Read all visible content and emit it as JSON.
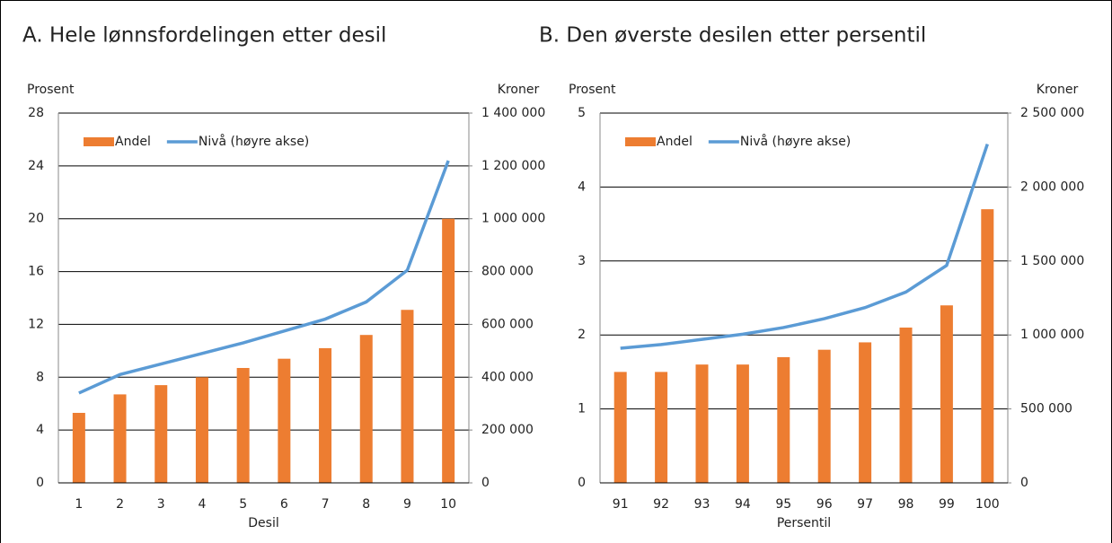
{
  "chart_data": [
    {
      "type": "combo",
      "title": "A. Hele lønnsfordelingen etter desil",
      "ylabel": "Prosent",
      "y2label": "Kroner",
      "xlabel": "Desil",
      "categories": [
        "1",
        "2",
        "3",
        "4",
        "5",
        "6",
        "7",
        "8",
        "9",
        "10"
      ],
      "series": [
        {
          "name": "Andel",
          "type": "bar",
          "color": "#ed7d31",
          "values": [
            5.3,
            6.7,
            7.4,
            8.0,
            8.7,
            9.4,
            10.2,
            11.2,
            13.1,
            20.0
          ]
        },
        {
          "name": "Nivå (høyre akse)",
          "type": "line",
          "axis": "y2",
          "color": "#5b9bd5",
          "values": [
            340000,
            410000,
            450000,
            490000,
            530000,
            575000,
            620000,
            685000,
            805000,
            1220000
          ]
        }
      ],
      "ylim": [
        0,
        28
      ],
      "yticks": [
        0,
        4,
        8,
        12,
        16,
        20,
        24,
        28
      ],
      "y2lim": [
        0,
        1400000
      ],
      "y2ticks": [
        0,
        {
          "value": 200000,
          "label": "200 000"
        },
        {
          "value": 400000,
          "label": "400 000"
        },
        {
          "value": 600000,
          "label": "600 000"
        },
        {
          "value": 800000,
          "label": "800 000"
        },
        {
          "value": 1000000,
          "label": "1 000 000"
        },
        {
          "value": 1200000,
          "label": "1 200 000"
        },
        {
          "value": 1400000,
          "label": "1 400 000"
        }
      ],
      "grid": true,
      "legend": "upper left"
    },
    {
      "type": "combo",
      "title": "B. Den øverste desilen etter persentil",
      "ylabel": "Prosent",
      "y2label": "Kroner",
      "xlabel": "Persentil",
      "categories": [
        "91",
        "92",
        "93",
        "94",
        "95",
        "96",
        "97",
        "98",
        "99",
        "100"
      ],
      "series": [
        {
          "name": "Andel",
          "type": "bar",
          "color": "#ed7d31",
          "values": [
            1.5,
            1.5,
            1.6,
            1.6,
            1.7,
            1.8,
            1.9,
            2.1,
            2.4,
            3.7
          ]
        },
        {
          "name": "Nivå (høyre akse)",
          "type": "line",
          "axis": "y2",
          "color": "#5b9bd5",
          "values": [
            910000,
            935000,
            970000,
            1005000,
            1050000,
            1110000,
            1185000,
            1290000,
            1470000,
            2290000
          ]
        }
      ],
      "ylim": [
        0,
        5
      ],
      "yticks": [
        0,
        1,
        2,
        3,
        4,
        5
      ],
      "y2lim": [
        0,
        2500000
      ],
      "y2ticks": [
        0,
        {
          "value": 500000,
          "label": "500 000"
        },
        {
          "value": 1000000,
          "label": "1 000 000"
        },
        {
          "value": 1500000,
          "label": "1 500 000"
        },
        {
          "value": 2000000,
          "label": "2 000 000"
        },
        {
          "value": 2500000,
          "label": "2 500 000"
        }
      ],
      "grid": true,
      "legend": "upper left"
    }
  ]
}
